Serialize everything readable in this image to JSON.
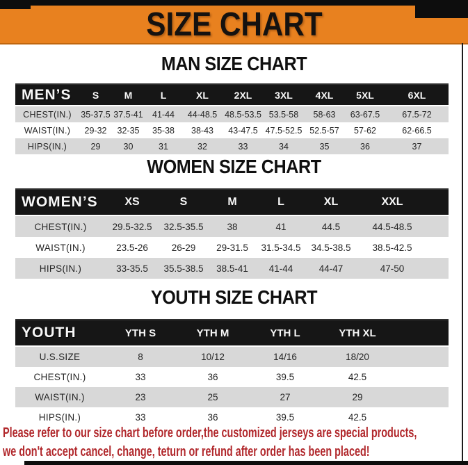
{
  "colors": {
    "banner_bg": "#E8811F",
    "banner_text": "#151210",
    "bar_color": "#0d0d0d",
    "table_header_bg": "#161616",
    "row_alt": "#d8d8d8",
    "row_white": "#ffffff",
    "data_text": "#252525",
    "disclaimer_color": "#b1282c"
  },
  "banner": {
    "title": "SIZE CHART"
  },
  "sections": [
    {
      "id": "men",
      "title": "MAN SIZE CHART",
      "table": {
        "header_label": "MEN’S",
        "columns": [
          "S",
          "M",
          "L",
          "XL",
          "2XL",
          "3XL",
          "4XL",
          "5XL",
          "6XL"
        ],
        "rows": [
          {
            "label": "CHEST(IN.)",
            "values": [
              "35-37.5",
              "37.5-41",
              "41-44",
              "44-48.5",
              "48.5-53.5",
              "53.5-58",
              "58-63",
              "63-67.5",
              "67.5-72"
            ]
          },
          {
            "label": "WAIST(IN.)",
            "values": [
              "29-32",
              "32-35",
              "35-38",
              "38-43",
              "43-47.5",
              "47.5-52.5",
              "52.5-57",
              "57-62",
              "62-66.5"
            ]
          },
          {
            "label": "HIPS(IN.)",
            "values": [
              "29",
              "30",
              "31",
              "32",
              "33",
              "34",
              "35",
              "36",
              "37"
            ]
          }
        ]
      }
    },
    {
      "id": "women",
      "title": "WOMEN SIZE CHART",
      "table": {
        "header_label": "WOMEN’S",
        "columns": [
          "XS",
          "S",
          "M",
          "L",
          "XL",
          "XXL"
        ],
        "rows": [
          {
            "label": "CHEST(IN.)",
            "values": [
              "29.5-32.5",
              "32.5-35.5",
              "38",
              "41",
              "44.5",
              "44.5-48.5"
            ]
          },
          {
            "label": "WAIST(IN.)",
            "values": [
              "23.5-26",
              "26-29",
              "29-31.5",
              "31.5-34.5",
              "34.5-38.5",
              "38.5-42.5"
            ]
          },
          {
            "label": "HIPS(IN.)",
            "values": [
              "33-35.5",
              "35.5-38.5",
              "38.5-41",
              "41-44",
              "44-47",
              "47-50"
            ]
          }
        ]
      }
    },
    {
      "id": "youth",
      "title": "YOUTH SIZE CHART",
      "table": {
        "header_label": "YOUTH",
        "columns": [
          "YTH S",
          "YTH M",
          "YTH L",
          "YTH XL"
        ],
        "rows": [
          {
            "label": "U.S.SIZE",
            "values": [
              "8",
              "10/12",
              "14/16",
              "18/20"
            ]
          },
          {
            "label": "CHEST(IN.)",
            "values": [
              "33",
              "36",
              "39.5",
              "42.5"
            ]
          },
          {
            "label": "WAIST(IN.)",
            "values": [
              "23",
              "25",
              "27",
              "29"
            ]
          },
          {
            "label": "HIPS(IN.)",
            "values": [
              "33",
              "36",
              "39.5",
              "42.5"
            ]
          }
        ]
      }
    }
  ],
  "disclaimer": {
    "line1": "Please refer to our size chart before order,the customized jerseys are special products,",
    "line2": "we don't accept cancel, change, teturn or refund after order has been placed!"
  }
}
